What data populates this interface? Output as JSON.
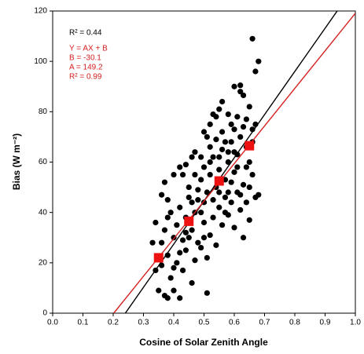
{
  "chart_data": {
    "type": "scatter",
    "xlabel": "Cosine of Solar Zenith Angle",
    "ylabel": "Bias (W m⁻²)",
    "xlim": [
      0,
      1
    ],
    "ylim": [
      0,
      120
    ],
    "xticks": [
      {
        "value": 0,
        "label": "0.0"
      },
      0.1,
      0.2,
      0.3,
      0.4,
      0.5,
      0.6,
      0.7,
      0.8,
      0.9,
      {
        "value": 1,
        "label": "1.0"
      }
    ],
    "yticks": [
      0,
      20,
      40,
      60,
      80,
      100,
      120
    ],
    "annotations": [
      {
        "text": "R² = 0.44",
        "color": "#000000"
      },
      {
        "text": "Y = AX + B",
        "color": "#d42020"
      },
      {
        "text": "B = -30.1",
        "color": "#d42020"
      },
      {
        "text": "A = 149.2",
        "color": "#d42020"
      },
      {
        "text": "R² = 0.99",
        "color": "#d42020"
      }
    ],
    "series": [
      {
        "marker": "circle",
        "color": "#000000",
        "x": [
          0.34,
          0.35,
          0.37,
          0.38,
          0.4,
          0.42,
          0.36,
          0.38,
          0.39,
          0.41,
          0.43,
          0.44,
          0.46,
          0.47,
          0.48,
          0.51,
          0.36,
          0.37,
          0.38,
          0.39,
          0.4,
          0.41,
          0.42,
          0.43,
          0.44,
          0.45,
          0.46,
          0.47,
          0.48,
          0.49,
          0.5,
          0.5,
          0.51,
          0.52,
          0.53,
          0.54,
          0.55,
          0.56,
          0.57,
          0.58,
          0.59,
          0.6,
          0.61,
          0.62,
          0.63,
          0.64,
          0.65,
          0.34,
          0.33,
          0.36,
          0.37,
          0.4,
          0.42,
          0.43,
          0.44,
          0.46,
          0.47,
          0.49,
          0.5,
          0.51,
          0.52,
          0.53,
          0.54,
          0.55,
          0.58,
          0.6,
          0.62,
          0.62,
          0.6,
          0.63,
          0.64,
          0.66,
          0.67,
          0.66,
          0.68,
          0.67,
          0.68,
          0.67,
          0.66,
          0.64,
          0.45,
          0.47,
          0.48,
          0.49,
          0.5,
          0.51,
          0.52,
          0.53,
          0.54,
          0.55,
          0.56,
          0.57,
          0.58,
          0.59,
          0.6,
          0.61,
          0.62,
          0.63,
          0.64,
          0.65,
          0.66,
          0.52,
          0.54,
          0.56,
          0.57,
          0.58,
          0.59,
          0.61,
          0.63,
          0.65,
          0.53,
          0.55,
          0.57,
          0.59,
          0.61,
          0.62,
          0.46,
          0.44,
          0.42,
          0.4,
          0.38,
          0.45,
          0.5,
          0.55,
          0.6,
          0.65,
          0.49,
          0.58,
          0.56,
          0.52
        ],
        "values": [
          17,
          9,
          7,
          6,
          9,
          6,
          19,
          23,
          14,
          20,
          17,
          25,
          12,
          21,
          28,
          8,
          28,
          33,
          38,
          40,
          30,
          35,
          42,
          29,
          38,
          46,
          33,
          40,
          49,
          26,
          36,
          44,
          22,
          31,
          38,
          27,
          42,
          35,
          46,
          39,
          44,
          34,
          48,
          41,
          30,
          44,
          37,
          36,
          28,
          47,
          52,
          55,
          58,
          55,
          59,
          62,
          64,
          62,
          72,
          70,
          75,
          79,
          78,
          81,
          79,
          73,
          88,
          90.5,
          90,
          86.5,
          77,
          73,
          75,
          109,
          100,
          96,
          47,
          46,
          55,
          58,
          50,
          55,
          45,
          53,
          58,
          48,
          55,
          62,
          50,
          57,
          65,
          53,
          60,
          68,
          56,
          63,
          70,
          51,
          66,
          60,
          68,
          66,
          69,
          72,
          68,
          64,
          75,
          78,
          74,
          82,
          45,
          48,
          40,
          52,
          58,
          47,
          44,
          32,
          24,
          18,
          45,
          30,
          30,
          62,
          64,
          50,
          40,
          48,
          84,
          60
        ]
      },
      {
        "marker": "line",
        "color": "#000000",
        "x": [
          0.24,
          0.94
        ],
        "values": [
          0,
          120
        ]
      },
      {
        "marker": "line",
        "color": "#d42020",
        "x": [
          0.2017,
          1.0
        ],
        "values": [
          0,
          119.1
        ]
      },
      {
        "marker": "square",
        "color": "#ee1111",
        "x": [
          0.35,
          0.45,
          0.55,
          0.65
        ],
        "values": [
          22,
          36.5,
          52.5,
          66.5
        ]
      }
    ]
  }
}
